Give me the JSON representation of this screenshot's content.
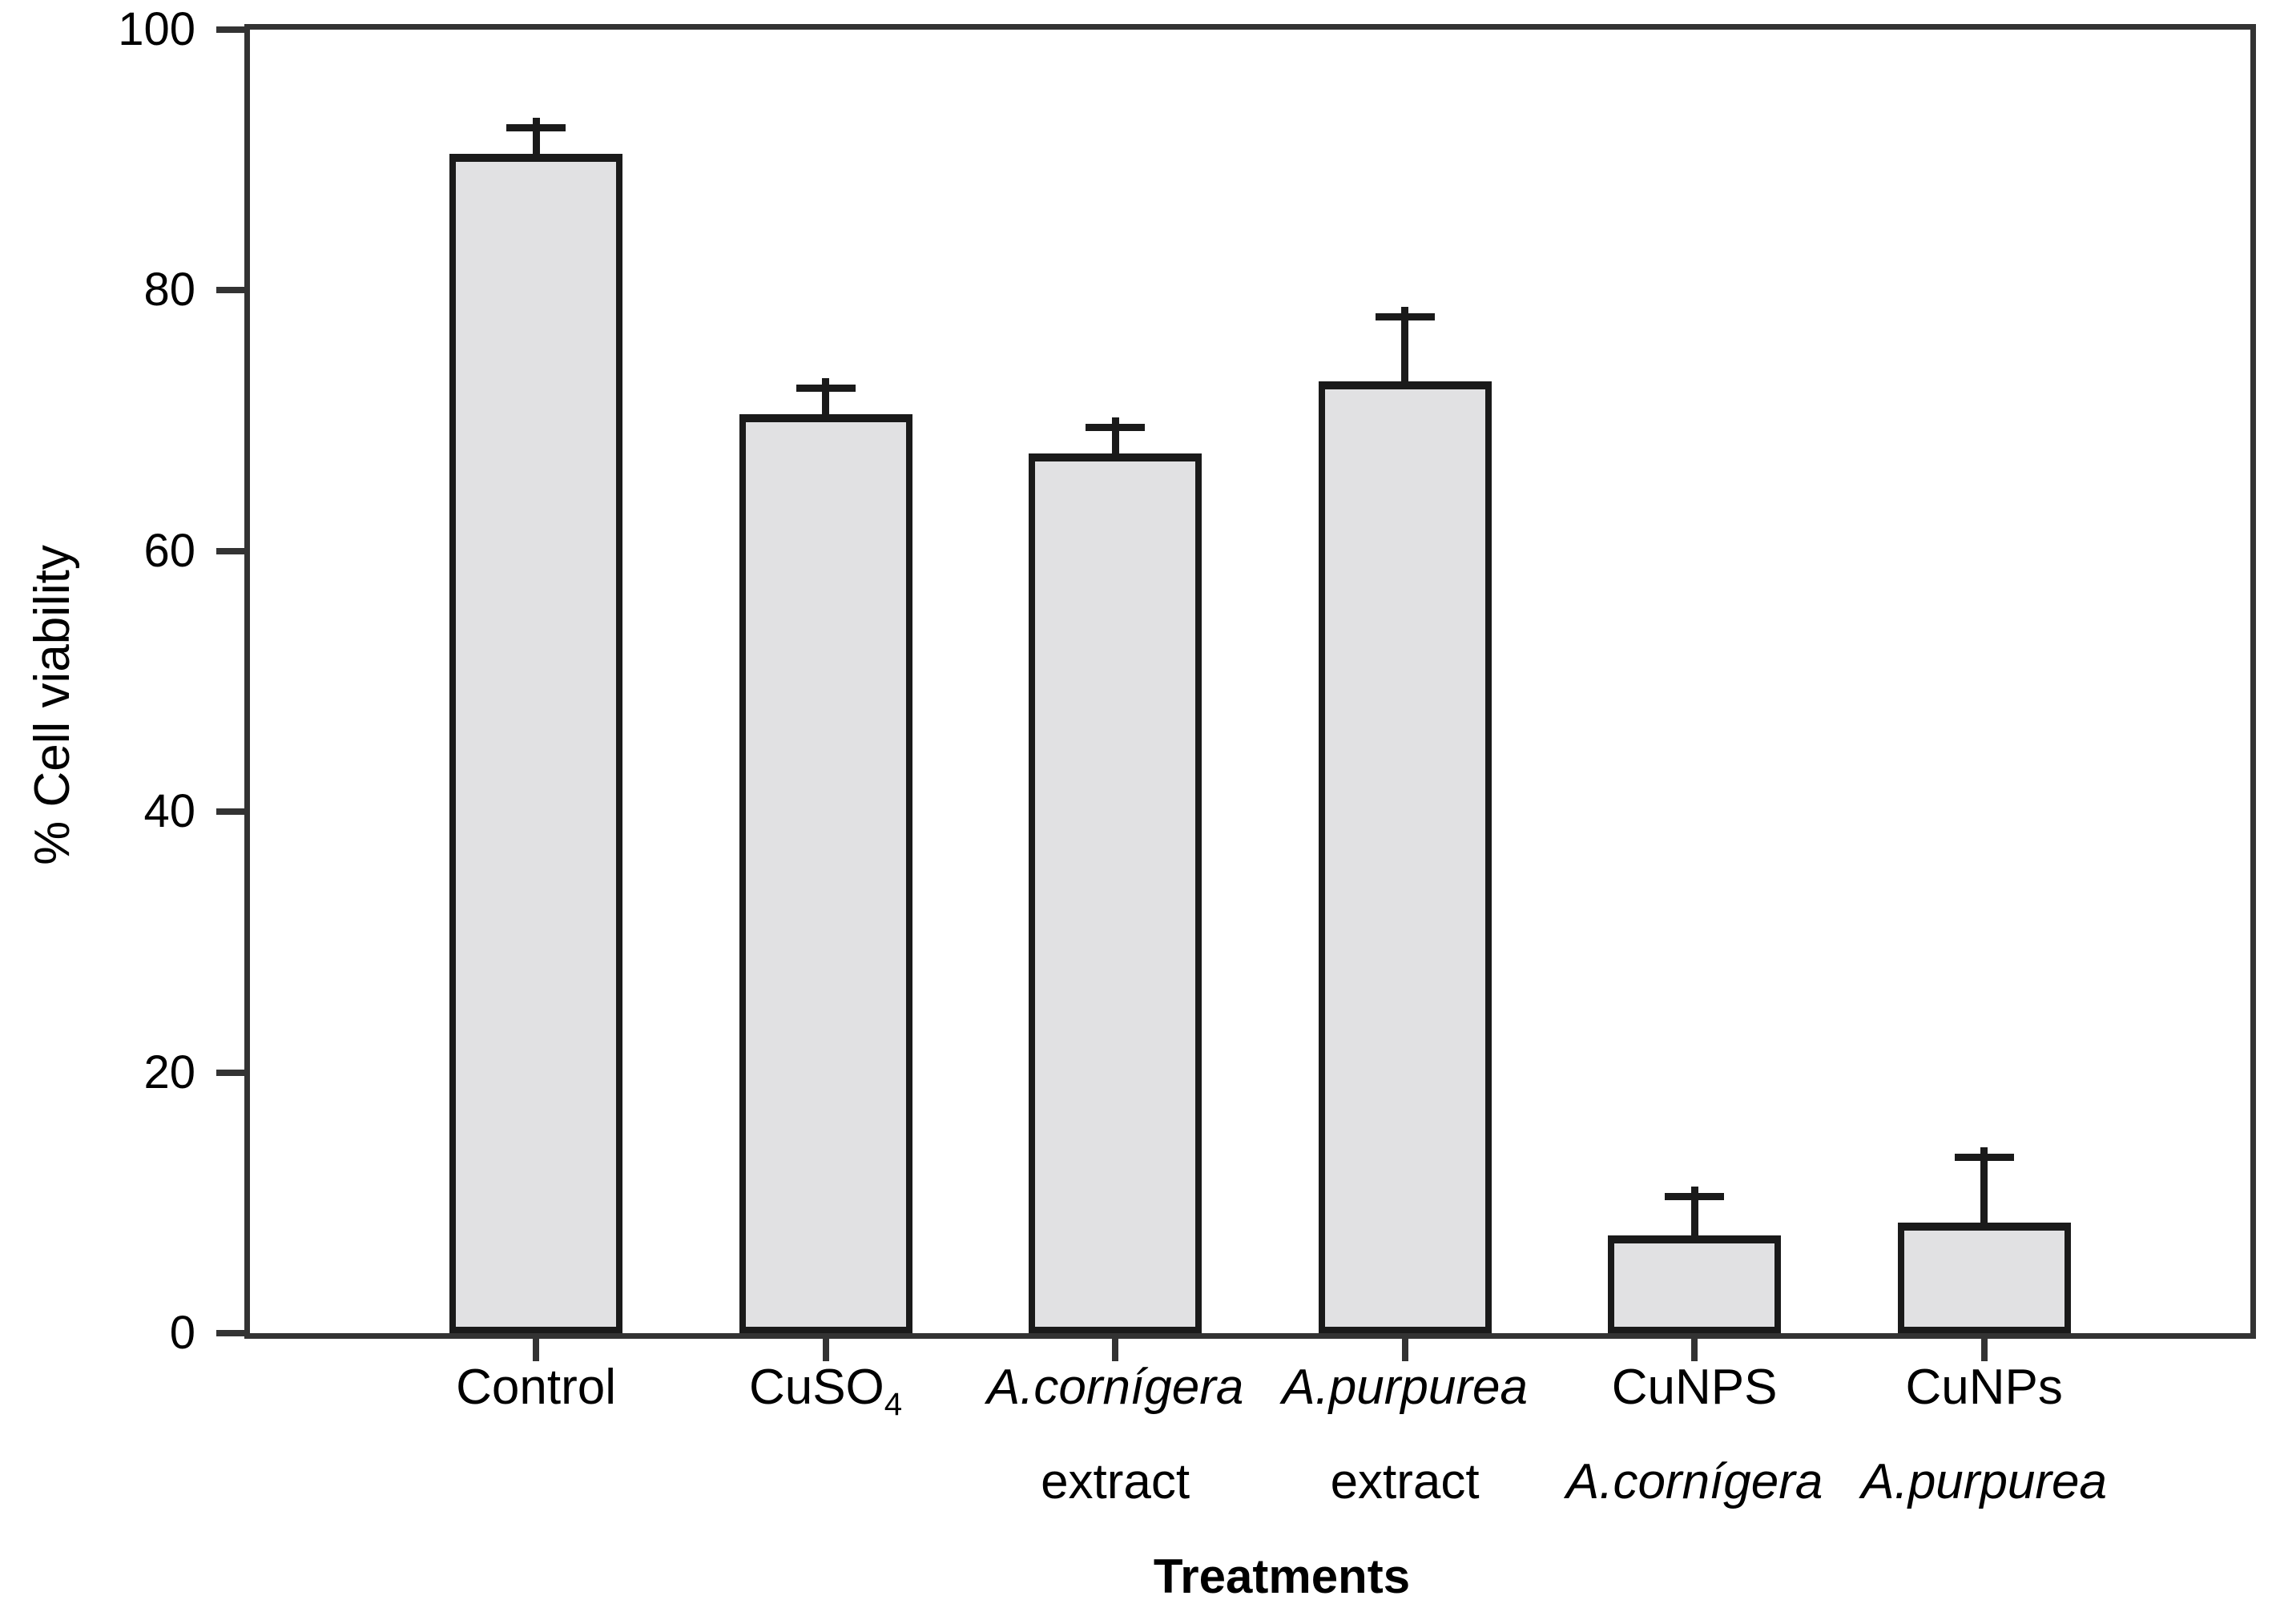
{
  "figure": {
    "ylabel": "% Cell viability",
    "xlabel": "Treatments"
  },
  "chart_data": {
    "type": "bar",
    "title": "",
    "xlabel": "Treatments",
    "ylabel": "% Cell viability",
    "ylim": [
      0,
      100
    ],
    "yticks": [
      0,
      20,
      40,
      60,
      80,
      100
    ],
    "grid": false,
    "legend": false,
    "frame": "full-box",
    "error_direction": "upper",
    "bar_fill_color": "#e1e1e3",
    "bar_border_color": "#1a1a1a",
    "frame_color": "#333333",
    "category_names": [
      "Control",
      "CuSO4",
      "A.cornígera extract",
      "A.purpurea extract",
      "CuNPS A.cornígera",
      "CuNPs A.purpurea"
    ],
    "categories": [
      {
        "lines": [
          [
            {
              "t": "Control"
            }
          ]
        ]
      },
      {
        "lines": [
          [
            {
              "t": "CuSO"
            },
            {
              "t": "4",
              "sub": true
            }
          ]
        ]
      },
      {
        "lines": [
          [
            {
              "t": "A.cornígera",
              "italic": true
            }
          ],
          [
            {
              "t": "extract"
            }
          ]
        ]
      },
      {
        "lines": [
          [
            {
              "t": "A.purpurea",
              "italic": true
            }
          ],
          [
            {
              "t": "extract"
            }
          ]
        ]
      },
      {
        "lines": [
          [
            {
              "t": "CuNPS"
            }
          ],
          [
            {
              "t": "A.cornígera",
              "italic": true
            }
          ]
        ]
      },
      {
        "lines": [
          [
            {
              "t": "CuNPs"
            }
          ],
          [
            {
              "t": "A.purpurea",
              "italic": true
            }
          ]
        ]
      }
    ],
    "values": [
      90.5,
      70.5,
      67.5,
      73,
      7.5,
      8.5
    ],
    "errors": [
      2,
      2,
      2,
      5,
      3,
      5
    ]
  }
}
